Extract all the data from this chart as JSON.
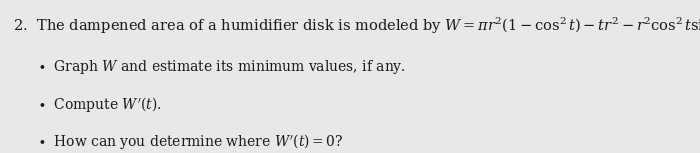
{
  "background_color": "#e8e8e8",
  "font_size_main": 10.5,
  "font_size_bullet": 10.0,
  "text_color": "#1a1a1a"
}
